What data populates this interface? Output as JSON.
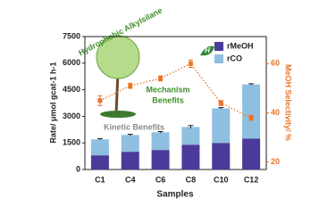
{
  "chart_data": {
    "type": "bar",
    "x_label": "Samples",
    "y_label": "Rate/ μmol gcat-1 h-1",
    "y2_label": "MeOH Selectivity/ %",
    "annotations": {
      "tree": "Hydrophobic Alkylsilane",
      "mechanism": [
        "Mechanism",
        "Benefits"
      ],
      "kinetic": "Kinetic Benefits",
      "leaf": "H"
    },
    "categories": [
      "C1",
      "C4",
      "C6",
      "C8",
      "C10",
      "C12"
    ],
    "series": [
      {
        "name": "rMeOH",
        "color": "#4b3a9a",
        "values": [
          800,
          1000,
          1100,
          1400,
          1500,
          1750
        ]
      },
      {
        "name": "rCO",
        "color": "#8fbfe0",
        "values": [
          900,
          950,
          1000,
          1000,
          1950,
          3050
        ],
        "errors": [
          40,
          40,
          40,
          80,
          40,
          40
        ]
      },
      {
        "name": "MeOH Selectivity",
        "type": "line",
        "axis": "y2",
        "color": "#e8742a",
        "values": [
          45,
          51,
          54,
          60,
          44,
          38
        ],
        "errors": [
          2,
          1,
          1,
          1.5,
          1,
          1
        ]
      }
    ],
    "ylim": [
      0,
      7500
    ],
    "yticks": [
      0,
      1500,
      3000,
      4500,
      6000,
      7500
    ],
    "y2lim": [
      17,
      71
    ],
    "y2ticks": [
      20,
      40,
      60
    ],
    "legend": "upper right"
  }
}
